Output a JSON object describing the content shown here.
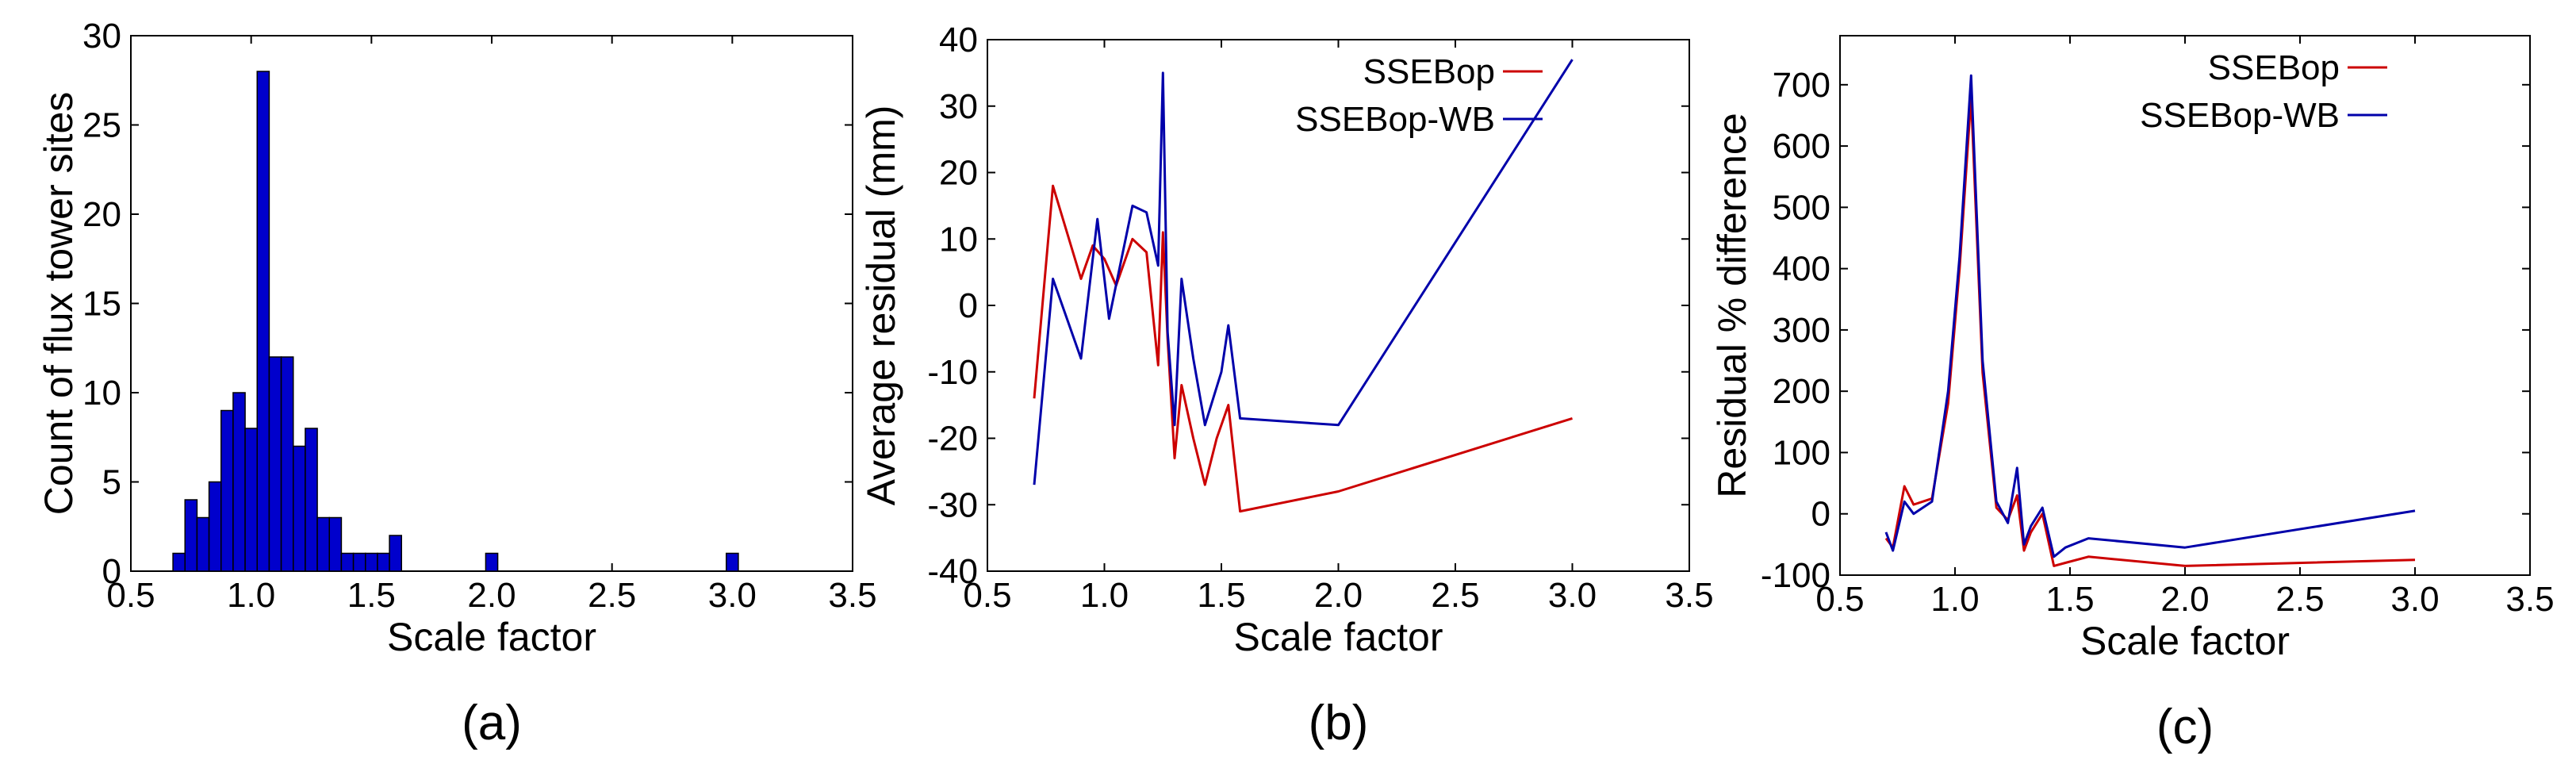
{
  "chart_data": [
    {
      "type": "bar",
      "caption": "(a)",
      "xlabel": "Scale factor",
      "ylabel": "Count of flux tower sites",
      "xlim": [
        0.5,
        3.5
      ],
      "ylim": [
        0,
        30
      ],
      "xticks": [
        "0.5",
        "1.0",
        "1.5",
        "2.0",
        "2.5",
        "3.0",
        "3.5"
      ],
      "yticks": [
        "0",
        "5",
        "10",
        "15",
        "20",
        "25",
        "30"
      ],
      "bar_color": "#0000cc",
      "bin_width": 0.025,
      "bins": [
        {
          "x": 0.7,
          "count": 1
        },
        {
          "x": 0.75,
          "count": 4
        },
        {
          "x": 0.8,
          "count": 3
        },
        {
          "x": 0.85,
          "count": 5
        },
        {
          "x": 0.9,
          "count": 9
        },
        {
          "x": 0.95,
          "count": 10
        },
        {
          "x": 1.0,
          "count": 8
        },
        {
          "x": 1.05,
          "count": 28
        },
        {
          "x": 1.1,
          "count": 12
        },
        {
          "x": 1.15,
          "count": 12
        },
        {
          "x": 1.2,
          "count": 7
        },
        {
          "x": 1.25,
          "count": 8
        },
        {
          "x": 1.3,
          "count": 3
        },
        {
          "x": 1.35,
          "count": 3
        },
        {
          "x": 1.4,
          "count": 1
        },
        {
          "x": 1.45,
          "count": 1
        },
        {
          "x": 1.5,
          "count": 1
        },
        {
          "x": 1.55,
          "count": 1
        },
        {
          "x": 1.6,
          "count": 2
        },
        {
          "x": 2.0,
          "count": 1
        },
        {
          "x": 3.0,
          "count": 1
        }
      ]
    },
    {
      "type": "line",
      "caption": "(b)",
      "xlabel": "Scale factor",
      "ylabel": "Average residual (mm)",
      "xlim": [
        0.5,
        3.5
      ],
      "ylim": [
        -40,
        40
      ],
      "xticks": [
        "0.5",
        "1.0",
        "1.5",
        "2.0",
        "2.5",
        "3.0",
        "3.5"
      ],
      "yticks": [
        "-40",
        "-30",
        "-20",
        "-10",
        "0",
        "10",
        "20",
        "30",
        "40"
      ],
      "legend_position": "top-right",
      "series": [
        {
          "name": "SSEBop",
          "color": "#cc0000",
          "x": [
            0.7,
            0.78,
            0.9,
            0.95,
            1.0,
            1.05,
            1.12,
            1.18,
            1.23,
            1.25,
            1.27,
            1.3,
            1.33,
            1.38,
            1.43,
            1.48,
            1.53,
            1.58,
            2.0,
            3.0
          ],
          "y": [
            -14,
            18,
            4,
            9,
            7,
            3,
            10,
            8,
            -9,
            11,
            -5,
            -23,
            -12,
            -20,
            -27,
            -20,
            -15,
            -31,
            -28,
            -17
          ]
        },
        {
          "name": "SSEBop-WB",
          "color": "#0000aa",
          "x": [
            0.7,
            0.78,
            0.9,
            0.97,
            1.02,
            1.12,
            1.18,
            1.23,
            1.25,
            1.27,
            1.3,
            1.33,
            1.38,
            1.43,
            1.5,
            1.53,
            1.58,
            2.0,
            3.0
          ],
          "y": [
            -27,
            4,
            -8,
            13,
            -2,
            15,
            14,
            6,
            35,
            -4,
            -18,
            4,
            -8,
            -18,
            -10,
            -3,
            -17,
            -18,
            37
          ]
        }
      ]
    },
    {
      "type": "line",
      "caption": "(c)",
      "xlabel": "Scale factor",
      "ylabel": "Residual % difference",
      "xlim": [
        0.5,
        3.5
      ],
      "ylim": [
        -100,
        780
      ],
      "xticks": [
        "0.5",
        "1.0",
        "1.5",
        "2.0",
        "2.5",
        "3.0",
        "3.5"
      ],
      "yticks": [
        "-100",
        "0",
        "100",
        "200",
        "300",
        "400",
        "500",
        "600",
        "700"
      ],
      "legend_position": "top-right",
      "series": [
        {
          "name": "SSEBop",
          "color": "#cc0000",
          "x": [
            0.7,
            0.73,
            0.78,
            0.82,
            0.9,
            0.97,
            1.02,
            1.07,
            1.12,
            1.18,
            1.23,
            1.27,
            1.3,
            1.33,
            1.38,
            1.43,
            1.48,
            1.58,
            2.0,
            3.0
          ],
          "y": [
            -40,
            -55,
            45,
            15,
            25,
            180,
            400,
            680,
            230,
            10,
            -10,
            30,
            -60,
            -30,
            0,
            -85,
            -80,
            -70,
            -85,
            -75
          ]
        },
        {
          "name": "SSEBop-WB",
          "color": "#0000aa",
          "x": [
            0.7,
            0.73,
            0.78,
            0.82,
            0.9,
            0.97,
            1.02,
            1.07,
            1.12,
            1.18,
            1.23,
            1.27,
            1.3,
            1.33,
            1.38,
            1.43,
            1.48,
            1.58,
            2.0,
            3.0
          ],
          "y": [
            -30,
            -60,
            20,
            0,
            20,
            200,
            420,
            715,
            250,
            20,
            -15,
            75,
            -50,
            -20,
            10,
            -70,
            -55,
            -40,
            -55,
            5
          ]
        }
      ]
    }
  ]
}
